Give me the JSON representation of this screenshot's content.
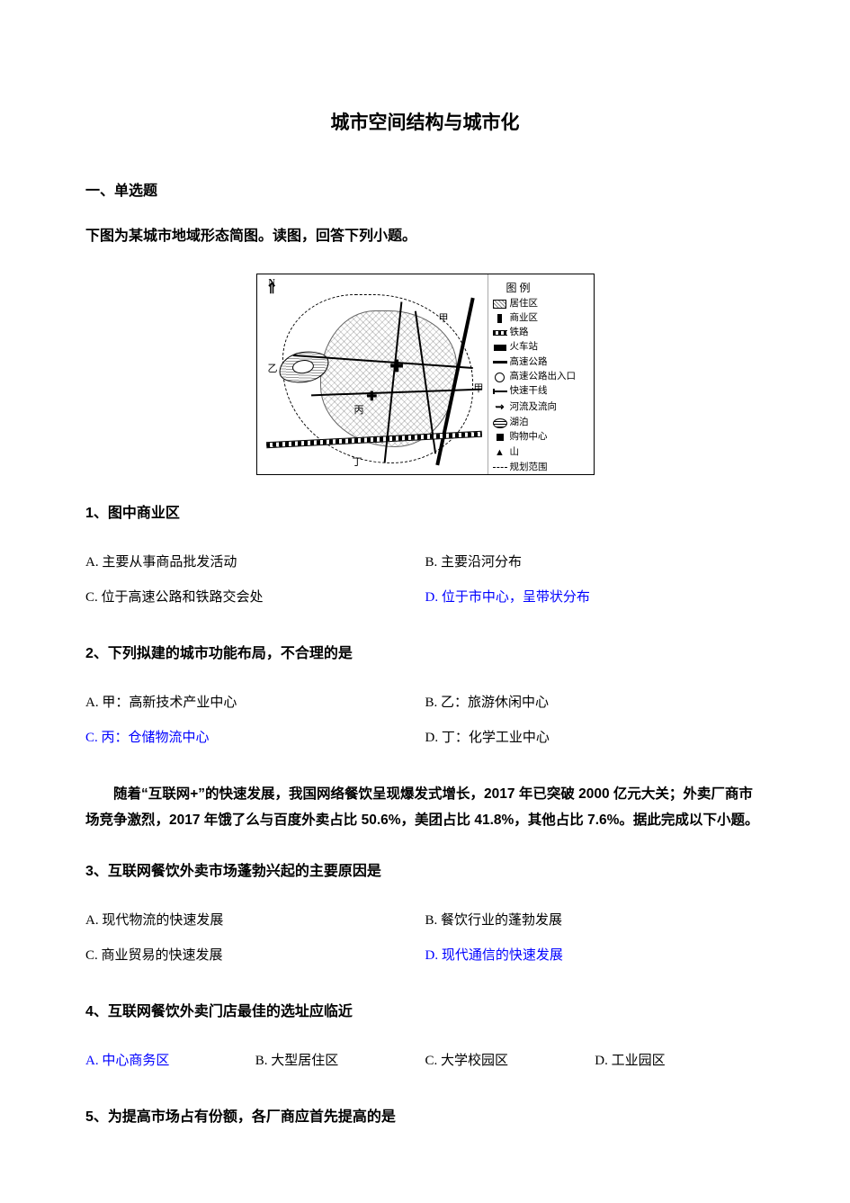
{
  "colors": {
    "text": "#000000",
    "answer": "#0000ff",
    "bg": "#ffffff"
  },
  "title": "城市空间结构与城市化",
  "section": "一、单选题",
  "passage1_intro": "下图为某城市地域形态简图。读图，回答下列小题。",
  "map": {
    "compass_label": "N",
    "legend_title": "图 例",
    "legend": {
      "residential": "居住区",
      "commercial": "商业区",
      "railway": "铁路",
      "train_station": "火车站",
      "highway": "高速公路",
      "highway_exit": "高速公路出入口",
      "express_road": "快速干线",
      "river": "河流及流向",
      "lake": "湖泊",
      "mall": "购物中心",
      "mountain": "山",
      "plan_boundary": "规划范围"
    },
    "point_labels": {
      "jia": "甲",
      "yi": "乙",
      "bing": "丙",
      "ding": "丁"
    }
  },
  "q1": {
    "stem": "1、图中商业区",
    "A": "A. 主要从事商品批发活动",
    "B": "B. 主要沿河分布",
    "C": "C. 位于高速公路和铁路交会处",
    "D": "D. 位于市中心，呈带状分布",
    "answer": "D"
  },
  "q2": {
    "stem": "2、下列拟建的城市功能布局，不合理的是",
    "A": "A. 甲：高新技术产业中心",
    "B": "B. 乙：旅游休闲中心",
    "C": "C. 丙：仓储物流中心",
    "D": "D. 丁：化学工业中心",
    "answer": "C"
  },
  "passage2_intro": "随着“互联网+”的快速发展，我国网络餐饮呈现爆发式增长，2017 年已突破 2000 亿元大关；外卖厂商市场竞争激烈，2017 年饿了么与百度外卖占比 50.6%，美团占比 41.8%，其他占比 7.6%。据此完成以下小题。",
  "q3": {
    "stem": "3、互联网餐饮外卖市场蓬勃兴起的主要原因是",
    "A": "A. 现代物流的快速发展",
    "B": "B. 餐饮行业的蓬勃发展",
    "C": "C. 商业贸易的快速发展",
    "D": "D. 现代通信的快速发展",
    "answer": "D"
  },
  "q4": {
    "stem": "4、互联网餐饮外卖门店最佳的选址应临近",
    "A": "A. 中心商务区",
    "B": "B. 大型居住区",
    "C": "C. 大学校园区",
    "D": "D. 工业园区",
    "answer": "A"
  },
  "q5": {
    "stem": "5、为提高市场占有份额，各厂商应首先提高的是"
  }
}
